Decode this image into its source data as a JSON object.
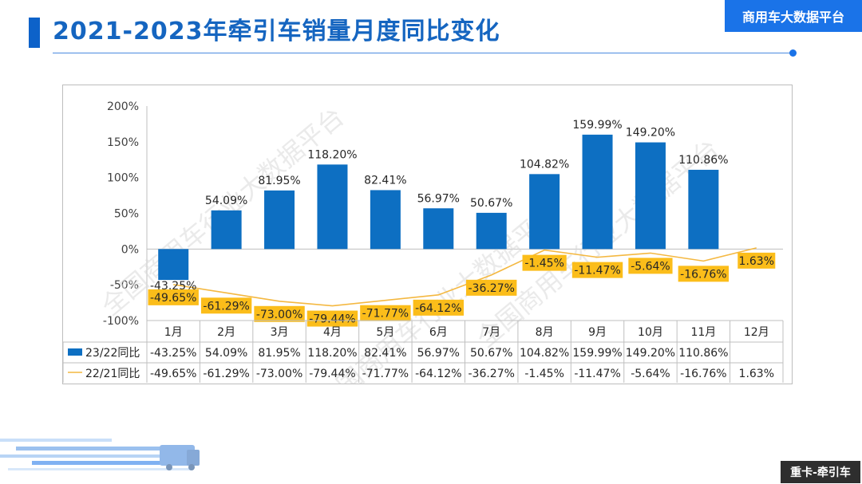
{
  "header": {
    "title": "2021-2023年牵引车销量月度同比变化",
    "brand": "商用车大数据平台"
  },
  "footer": {
    "tag": "重卡-牵引车"
  },
  "watermark": {
    "text": "全国商用车行业大数据平台"
  },
  "colors": {
    "accent": "#1565c0",
    "bar": "#0d6fc2",
    "line": "#f4b841",
    "label_bg": "#fbbd1a"
  },
  "chart_data": {
    "type": "bar",
    "categories": [
      "1月",
      "2月",
      "3月",
      "4月",
      "5月",
      "6月",
      "7月",
      "8月",
      "9月",
      "10月",
      "11月",
      "12月"
    ],
    "series": [
      {
        "name": "23/22同比",
        "type": "bar",
        "values": [
          -43.25,
          54.09,
          81.95,
          118.2,
          82.41,
          56.97,
          50.67,
          104.82,
          159.99,
          149.2,
          110.86,
          null
        ]
      },
      {
        "name": "22/21同比",
        "type": "line",
        "values": [
          -49.65,
          -61.29,
          -73.0,
          -79.44,
          -71.77,
          -64.12,
          -36.27,
          -1.45,
          -11.47,
          -5.64,
          -16.76,
          1.63
        ]
      }
    ],
    "bar_labels": [
      "-43.25%",
      "54.09%",
      "81.95%",
      "118.20%",
      "82.41%",
      "56.97%",
      "50.67%",
      "104.82%",
      "159.99%",
      "149.20%",
      "110.86%",
      ""
    ],
    "line_labels": [
      "-49.65%",
      "-61.29%",
      "-73.00%",
      "-79.44%",
      "-71.77%",
      "-64.12%",
      "-36.27%",
      "-1.45%",
      "-11.47%",
      "-5.64%",
      "-16.76%",
      "1.63%"
    ],
    "yticks": [
      "200%",
      "150%",
      "100%",
      "50%",
      "0%",
      "-50%",
      "-100%"
    ],
    "ylim": [
      -100,
      200
    ],
    "grid": false,
    "legend_position": "bottom",
    "data_table": true
  }
}
